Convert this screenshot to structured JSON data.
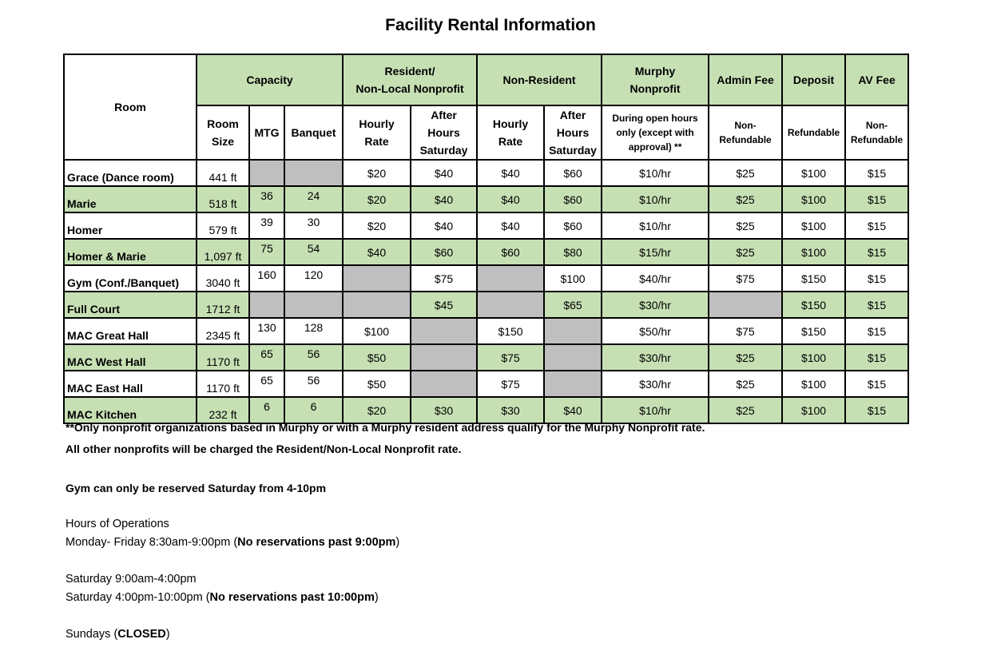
{
  "title": "Facility Rental Information",
  "table": {
    "headers": {
      "room": "Room",
      "capacity": "Capacity",
      "resident": "Resident/\nNon-Local Nonprofit",
      "resident_line1": "Resident/",
      "resident_line2": "Non-Local Nonprofit",
      "non_resident": "Non-Resident",
      "murphy_line1": "Murphy",
      "murphy_line2": "Nonprofit",
      "admin_fee": "Admin Fee",
      "deposit": "Deposit",
      "av_fee": "AV Fee",
      "sub": {
        "room_size_1": "Room",
        "room_size_2": "Size",
        "mtg": "MTG",
        "banquet": "Banquet",
        "res_hourly_1": "Hourly",
        "res_hourly_2": "Rate",
        "res_after_1": "After",
        "res_after_2": "Hours",
        "res_after_3": "Saturday",
        "nr_hourly_1": "Hourly",
        "nr_hourly_2": "Rate",
        "nr_after_1": "After",
        "nr_after_2": "Hours",
        "nr_after_3": "Saturday",
        "murphy_1": "During open hours",
        "murphy_2": "only (except with",
        "murphy_3": "approval) **",
        "admin_1": "Non-",
        "admin_2": "Refundable",
        "deposit": "Refundable",
        "av_1": "Non-",
        "av_2": "Refundable"
      }
    },
    "rows": [
      {
        "room": "Grace (Dance room)",
        "size": "441 ft",
        "mtg": "",
        "banquet": "",
        "res_hourly": "$20",
        "res_after": "$40",
        "nr_hourly": "$40",
        "nr_after": "$60",
        "murphy": "$10/hr",
        "admin": "$25",
        "deposit": "$100",
        "av": "$15"
      },
      {
        "room": "Marie",
        "size": "518 ft",
        "mtg": "36",
        "banquet": "24",
        "res_hourly": "$20",
        "res_after": "$40",
        "nr_hourly": "$40",
        "nr_after": "$60",
        "murphy": "$10/hr",
        "admin": "$25",
        "deposit": "$100",
        "av": "$15"
      },
      {
        "room": "Homer",
        "size": "579 ft",
        "mtg": "39",
        "banquet": "30",
        "res_hourly": "$20",
        "res_after": "$40",
        "nr_hourly": "$40",
        "nr_after": "$60",
        "murphy": "$10/hr",
        "admin": "$25",
        "deposit": "$100",
        "av": "$15"
      },
      {
        "room": "Homer & Marie",
        "size": "1,097 ft",
        "mtg": "75",
        "banquet": "54",
        "res_hourly": "$40",
        "res_after": "$60",
        "nr_hourly": "$60",
        "nr_after": "$80",
        "murphy": "$15/hr",
        "admin": "$25",
        "deposit": "$100",
        "av": "$15"
      },
      {
        "room": "Gym (Conf./Banquet)",
        "size": "3040 ft",
        "mtg": "160",
        "banquet": "120",
        "res_hourly": "",
        "res_after": "$75",
        "nr_hourly": "",
        "nr_after": "$100",
        "murphy": "$40/hr",
        "admin": "$75",
        "deposit": "$150",
        "av": "$15"
      },
      {
        "room": "Full Court",
        "size": "1712 ft",
        "mtg": "",
        "banquet": "",
        "res_hourly": "",
        "res_after": "$45",
        "nr_hourly": "",
        "nr_after": "$65",
        "murphy": "$30/hr",
        "admin": "",
        "deposit": "$150",
        "av": "$15"
      },
      {
        "room": "MAC Great Hall",
        "size": "2345 ft",
        "mtg": "130",
        "banquet": "128",
        "res_hourly": "$100",
        "res_after": "",
        "nr_hourly": "$150",
        "nr_after": "",
        "murphy": "$50/hr",
        "admin": "$75",
        "deposit": "$150",
        "av": "$15"
      },
      {
        "room": "MAC West Hall",
        "size": "1170 ft",
        "mtg": "65",
        "banquet": "56",
        "res_hourly": "$50",
        "res_after": "",
        "nr_hourly": "$75",
        "nr_after": "",
        "murphy": "$30/hr",
        "admin": "$25",
        "deposit": "$100",
        "av": "$15"
      },
      {
        "room": "MAC East Hall",
        "size": "1170 ft",
        "mtg": "65",
        "banquet": "56",
        "res_hourly": "$50",
        "res_after": "",
        "nr_hourly": "$75",
        "nr_after": "",
        "murphy": "$30/hr",
        "admin": "$25",
        "deposit": "$100",
        "av": "$15"
      },
      {
        "room": "MAC Kitchen",
        "size": "232 ft",
        "mtg": "6",
        "banquet": "6",
        "res_hourly": "$20",
        "res_after": "$30",
        "nr_hourly": "$30",
        "nr_after": "$40",
        "murphy": "$10/hr",
        "admin": "$25",
        "deposit": "$100",
        "av": "$15"
      }
    ]
  },
  "notes": {
    "nonprofit_1": "**Only nonprofit organizations based in Murphy or with a Murphy resident address qualify for the Murphy Nonprofit rate.",
    "nonprofit_2": "All other nonprofits will be charged the Resident/Non-Local Nonprofit rate.",
    "gym": "Gym can only be reserved Saturday from 4-10pm"
  },
  "hours": {
    "heading": "Hours of Operations",
    "weekday": "Monday- Friday  8:30am-9:00pm (",
    "weekday_bold": "No reservations past 9:00pm",
    "weekday_end": ")",
    "saturday_day": "Saturday 9:00am-4:00pm",
    "saturday_eve": "Saturday 4:00pm-10:00pm (",
    "saturday_eve_bold": "No reservations past 10:00pm",
    "saturday_eve_end": ")",
    "sunday": "Sundays (",
    "sunday_bold": "CLOSED",
    "sunday_end": ")"
  },
  "colors": {
    "header_green": "#c6e0b4",
    "row_green": "#c6e0b4",
    "unavailable_gray": "#bfbfbf"
  }
}
